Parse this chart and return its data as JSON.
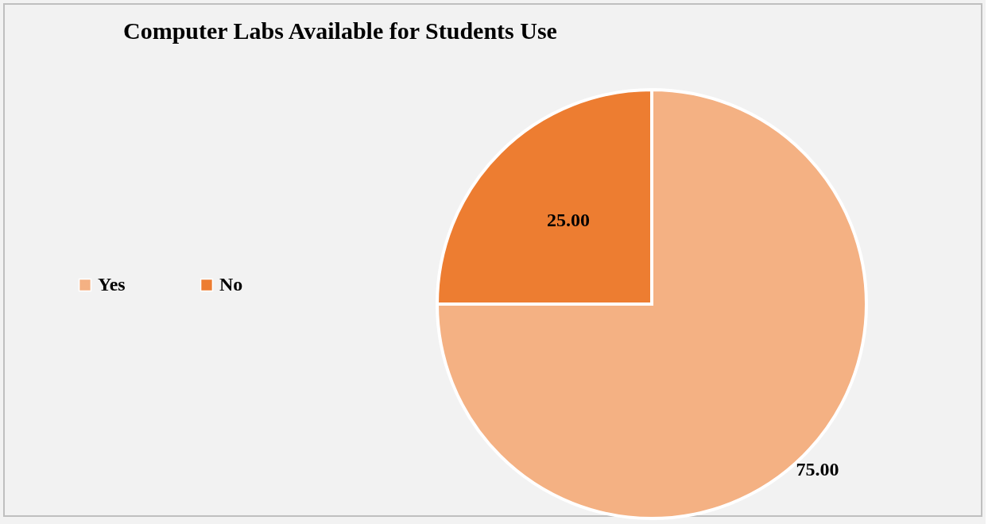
{
  "chart_data": {
    "type": "pie",
    "title": "Computer Labs Available for Students Use",
    "categories": [
      "Yes",
      "No"
    ],
    "values": [
      75,
      25
    ],
    "colors": [
      "#f4b183",
      "#ed7d31"
    ],
    "value_labels": [
      "75.00",
      "25.00"
    ],
    "legend": "left"
  }
}
